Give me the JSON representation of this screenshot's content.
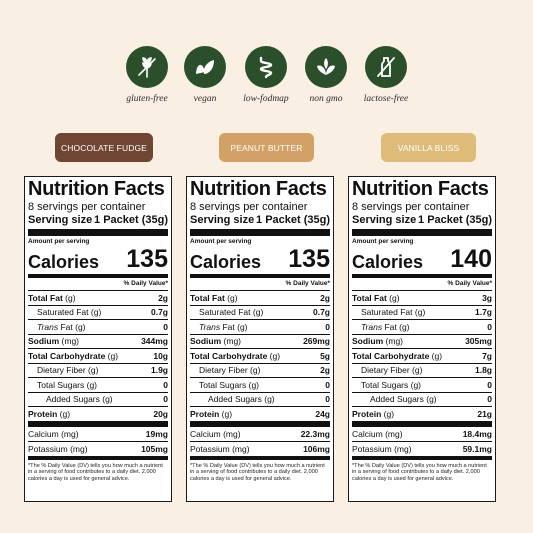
{
  "icons": [
    {
      "label": "gluten-free",
      "icon": "wheat-crossed-icon"
    },
    {
      "label": "vegan",
      "icon": "leaf-icon"
    },
    {
      "label": "low-fodmap",
      "icon": "intestine-icon"
    },
    {
      "label": "non gmo",
      "icon": "sprout-icon"
    },
    {
      "label": "lactose-free",
      "icon": "milk-bottle-crossed-icon"
    }
  ],
  "colors": {
    "background": "#f9efe3",
    "icon_green": "#2b4f2a",
    "chocolate": "#6f4634",
    "peanut": "#d3a166",
    "vanilla": "#ddbb79"
  },
  "panels": [
    {
      "flavor": "CHOCOLATE FUDGE",
      "title": "Nutrition Facts",
      "servings": "8 servings per container",
      "serving_size_label": "Serving size",
      "serving_size_value": "1 Packet (35g)",
      "amount_per_serving": "Amount per serving",
      "calories_label": "Calories",
      "calories": "135",
      "dv_header": "% Daily Value*",
      "total_fat": {
        "name": "Total Fat",
        "unit": "(g)",
        "value": "2g"
      },
      "sat_fat": {
        "name": "Saturated Fat",
        "unit": "(g)",
        "value": "0.7g"
      },
      "trans_fat": {
        "name": "Trans",
        "rest": "Fat (g)",
        "value": "0"
      },
      "sodium": {
        "name": "Sodium",
        "unit": "(mg)",
        "value": "344mg"
      },
      "carb": {
        "name": "Total Carbohydrate",
        "unit": "(g)",
        "value": "10g"
      },
      "fiber": {
        "name": "Dietary Fiber",
        "unit": "(g)",
        "value": "1.9g"
      },
      "sugars": {
        "name": "Total Sugars",
        "unit": "(g)",
        "value": "0"
      },
      "added": {
        "name": "Added Sugars",
        "unit": "(g)",
        "value": "0"
      },
      "protein": {
        "name": "Protein",
        "unit": "(g)",
        "value": "20g"
      },
      "calcium": {
        "name": "Calcium",
        "unit": "(mg)",
        "value": "19mg"
      },
      "potassium": {
        "name": "Potassium",
        "unit": "(mg)",
        "value": "105mg"
      },
      "footnote": "*The % Daily Value (DV) tells you how much a nutrient in a serving of food contributes to a daily diet. 2,000 calories a day is used for general advice."
    },
    {
      "flavor": "PEANUT BUTTER",
      "title": "Nutrition Facts",
      "servings": "8 servings per container",
      "serving_size_label": "Serving size",
      "serving_size_value": "1 Packet (35g)",
      "amount_per_serving": "Amount per serving",
      "calories_label": "Calories",
      "calories": "135",
      "dv_header": "% Daily Value*",
      "total_fat": {
        "name": "Total Fat",
        "unit": "(g)",
        "value": "2g"
      },
      "sat_fat": {
        "name": "Saturated Fat",
        "unit": "(g)",
        "value": "0.7g"
      },
      "trans_fat": {
        "name": "Trans",
        "rest": "Fat (g)",
        "value": "0"
      },
      "sodium": {
        "name": "Sodium",
        "unit": "(mg)",
        "value": "269mg"
      },
      "carb": {
        "name": "Total Carbohydrate",
        "unit": "(g)",
        "value": "5g"
      },
      "fiber": {
        "name": "Dietary Fiber",
        "unit": "(g)",
        "value": "2g"
      },
      "sugars": {
        "name": "Total Sugars",
        "unit": "(g)",
        "value": "0"
      },
      "added": {
        "name": "Added Sugars",
        "unit": "(g)",
        "value": "0"
      },
      "protein": {
        "name": "Protein",
        "unit": "(g)",
        "value": "24g"
      },
      "calcium": {
        "name": "Calcium",
        "unit": "(mg)",
        "value": "22.3mg"
      },
      "potassium": {
        "name": "Potassium",
        "unit": "(mg)",
        "value": "106mg"
      },
      "footnote": "*The % Daily Value (DV) tells you how much a nutrient in a serving of food contributes to a daily diet. 2,000 calories a day is used for general advice."
    },
    {
      "flavor": "VANILLA BLISS",
      "title": "Nutrition Facts",
      "servings": "8 servings per container",
      "serving_size_label": "Serving size",
      "serving_size_value": "1 Packet (35g)",
      "amount_per_serving": "Amount per serving",
      "calories_label": "Calories",
      "calories": "140",
      "dv_header": "% Daily Value*",
      "total_fat": {
        "name": "Total Fat",
        "unit": "(g)",
        "value": "3g"
      },
      "sat_fat": {
        "name": "Saturated Fat",
        "unit": "(g)",
        "value": "1.7g"
      },
      "trans_fat": {
        "name": "Trans",
        "rest": "Fat (g)",
        "value": "0"
      },
      "sodium": {
        "name": "Sodium",
        "unit": "(mg)",
        "value": "305mg"
      },
      "carb": {
        "name": "Total Carbohydrate",
        "unit": "(g)",
        "value": "7g"
      },
      "fiber": {
        "name": "Dietary Fiber",
        "unit": "(g)",
        "value": "1.8g"
      },
      "sugars": {
        "name": "Total Sugars",
        "unit": "(g)",
        "value": "0"
      },
      "added": {
        "name": "Added Sugars",
        "unit": "(g)",
        "value": "0"
      },
      "protein": {
        "name": "Protein",
        "unit": "(g)",
        "value": "21g"
      },
      "calcium": {
        "name": "Calcium",
        "unit": "(mg)",
        "value": "18.4mg"
      },
      "potassium": {
        "name": "Potassium",
        "unit": "(mg)",
        "value": "59.1mg"
      },
      "footnote": "*The % Daily Value (DV) tells you how much a nutrient in a serving of food contributes to a daily diet. 2,000 calories a day is used for general advice."
    }
  ]
}
